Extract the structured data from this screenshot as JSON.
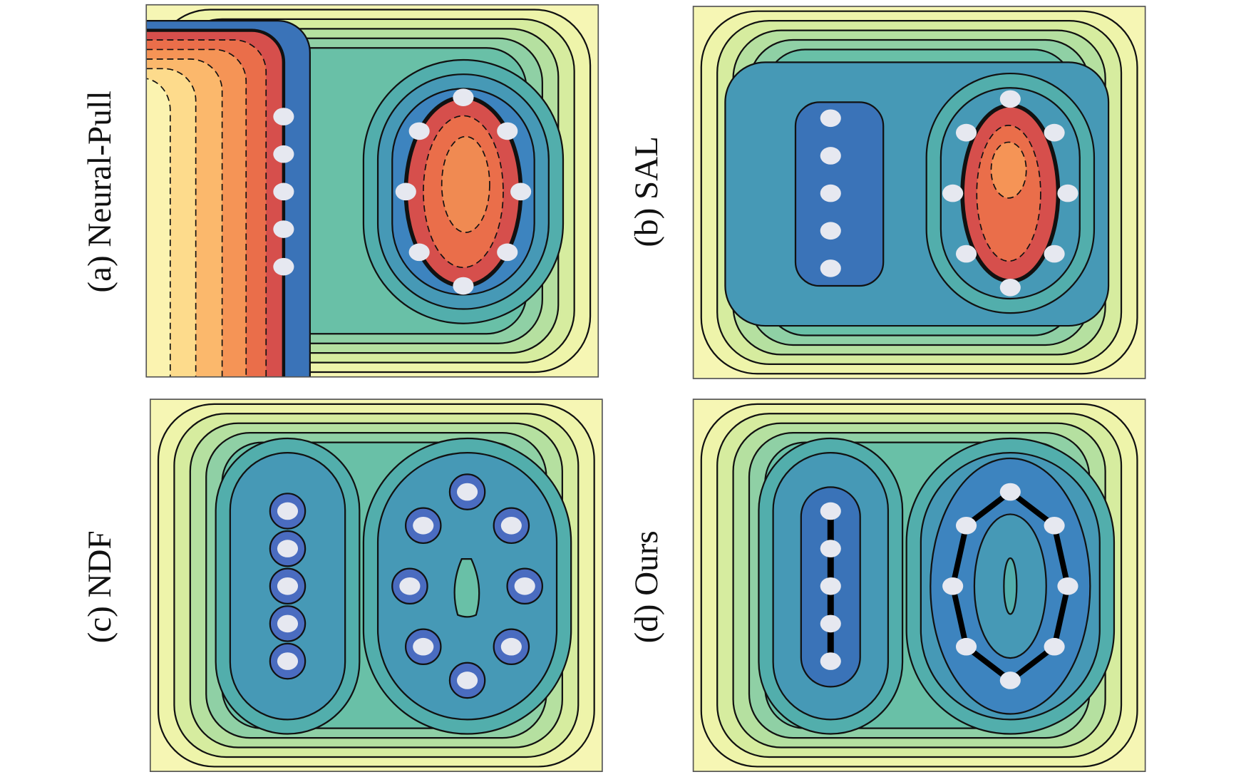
{
  "panels": [
    {
      "label": "(a) Neural-Pull"
    },
    {
      "label": "(b) SAL"
    },
    {
      "label": "(c) NDF"
    },
    {
      "label": "(d) Ours"
    }
  ]
}
